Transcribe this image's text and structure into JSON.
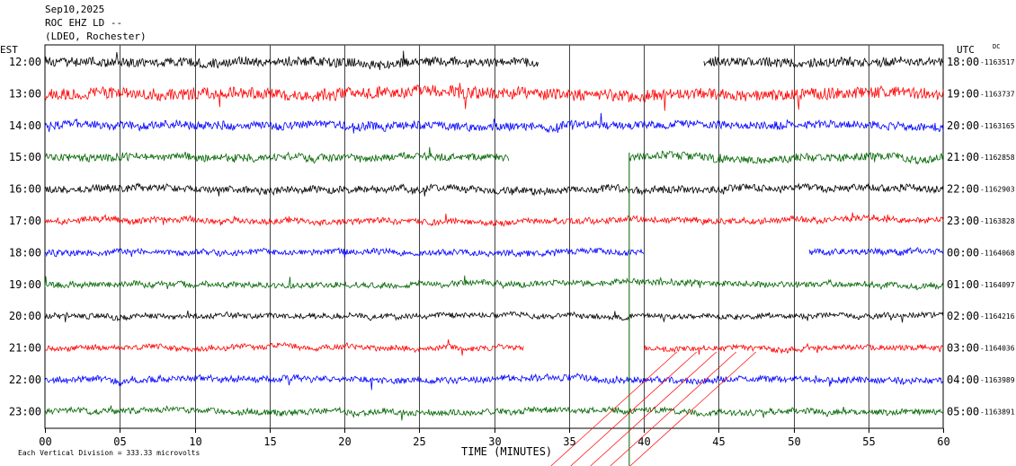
{
  "header": {
    "date": "Sep10,2025",
    "station": "ROC EHZ LD --",
    "network": "(LDEO, Rochester)"
  },
  "labels": {
    "left_timezone": "EST",
    "right_timezone": "UTC",
    "dc": "DC",
    "xlabel": "TIME (MINUTES)",
    "scale_note": "Each Vertical Division = 333.33 microvolts"
  },
  "colors": [
    "#000000",
    "#ff0000",
    "#0000ff",
    "#006400"
  ],
  "chart_data": {
    "type": "line",
    "title": "ROC EHZ LD --",
    "xlabel": "TIME (MINUTES)",
    "ylabel": "",
    "xlim": [
      0,
      60
    ],
    "x_ticks": [
      "00",
      "05",
      "10",
      "15",
      "20",
      "25",
      "30",
      "35",
      "40",
      "45",
      "50",
      "55",
      "60"
    ],
    "grid": true,
    "rows": [
      {
        "est": "12:00",
        "utc": "18:00",
        "dc": "-1163517",
        "color": "black",
        "gaps": [
          [
            33,
            44
          ]
        ],
        "noise": 1.6
      },
      {
        "est": "13:00",
        "utc": "19:00",
        "dc": "-1163737",
        "color": "red",
        "gaps": [],
        "noise": 2.0
      },
      {
        "est": "14:00",
        "utc": "20:00",
        "dc": "-1163165",
        "color": "blue",
        "gaps": [],
        "noise": 1.4
      },
      {
        "est": "15:00",
        "utc": "21:00",
        "dc": "-1162858",
        "color": "green",
        "gaps": [
          [
            31,
            39
          ]
        ],
        "noise": 1.3
      },
      {
        "est": "16:00",
        "utc": "22:00",
        "dc": "-1162903",
        "color": "black",
        "gaps": [],
        "noise": 1.2
      },
      {
        "est": "17:00",
        "utc": "23:00",
        "dc": "-1163828",
        "color": "red",
        "gaps": [],
        "noise": 1.0
      },
      {
        "est": "18:00",
        "utc": "00:00",
        "dc": "-1164068",
        "color": "blue",
        "gaps": [
          [
            40,
            51
          ]
        ],
        "noise": 1.0
      },
      {
        "est": "19:00",
        "utc": "01:00",
        "dc": "-1164097",
        "color": "green",
        "gaps": [],
        "noise": 1.0
      },
      {
        "est": "20:00",
        "utc": "02:00",
        "dc": "-1164216",
        "color": "black",
        "gaps": [],
        "noise": 0.9
      },
      {
        "est": "21:00",
        "utc": "03:00",
        "dc": "-1164036",
        "color": "red",
        "gaps": [
          [
            32,
            40
          ]
        ],
        "noise": 0.9
      },
      {
        "est": "22:00",
        "utc": "04:00",
        "dc": "-1163989",
        "color": "blue",
        "gaps": [],
        "noise": 1.1
      },
      {
        "est": "23:00",
        "utc": "05:00",
        "dc": "-1163891",
        "color": "green",
        "gaps": [],
        "noise": 1.0
      }
    ]
  }
}
